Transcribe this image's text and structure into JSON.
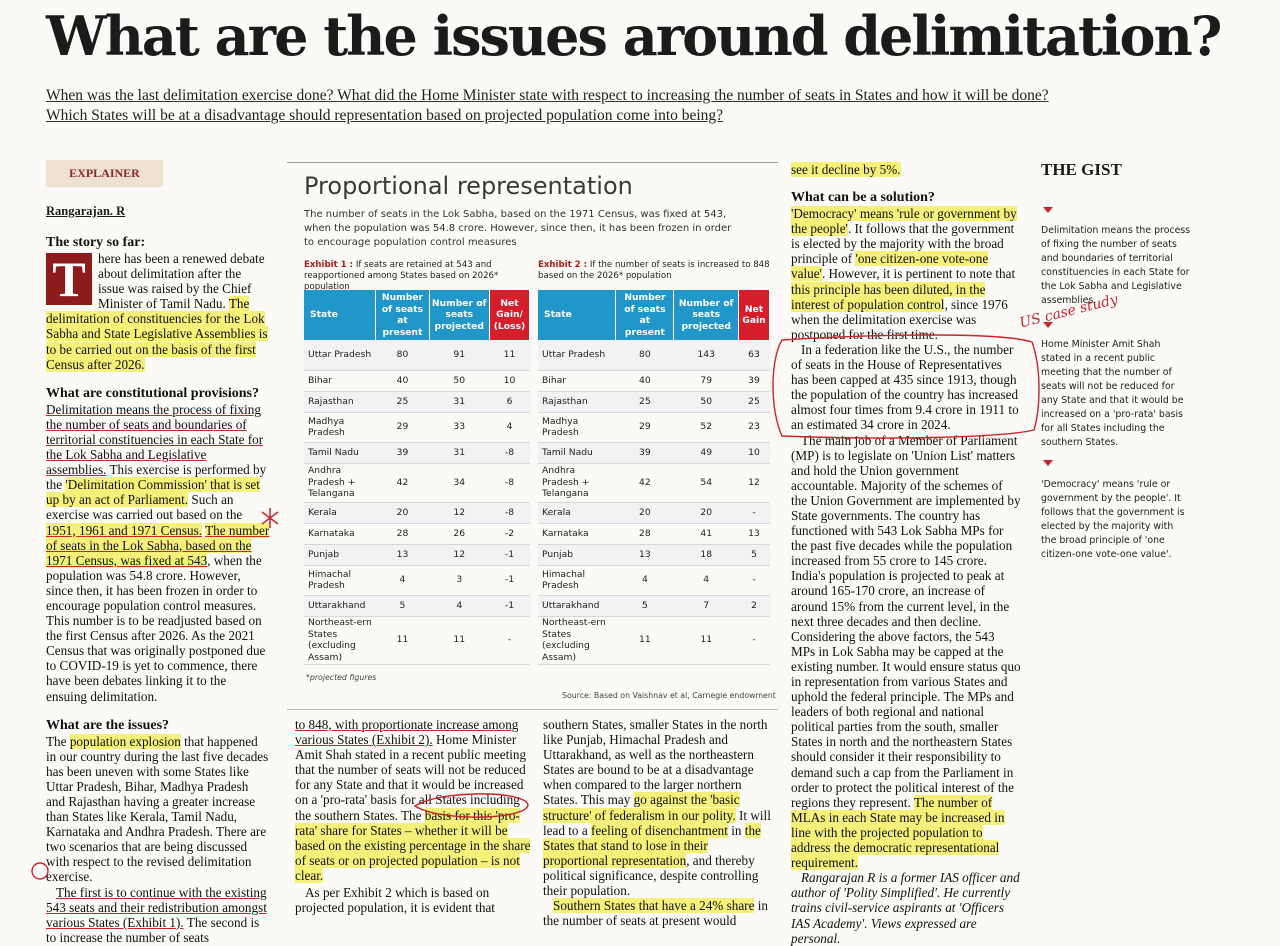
{
  "title": "What are the issues around delimitation?",
  "standfirst": "When was the last delimitation exercise done? What did the Home Minister state with respect to increasing the number of seats in States and how it will be done? Which States will be at a disadvantage should representation based on projected population come into being?",
  "badge": "EXPLAINER",
  "author": "Rangarajan. R",
  "col1": {
    "h1": "The story so far:",
    "dropcap": "T",
    "p1a": "here has been a renewed debate about delimitation after the issue was raised by the Chief Minister of Tamil Nadu. ",
    "p1b": "The delimitation of constituencies for the Lok Sabha and State Legislative Assemblies is to be carried out on the basis of the first Census after 2026.",
    "h2": "What are constitutional provisions?",
    "p2a": "Delimitation means the process of fixing the number of seats and boundaries of territorial constituencies in each State for the Lok Sabha and Legislative assemblies.",
    "p2b": " This exercise is performed by the ",
    "p2c": "'Delimitation Commission' that is set up by an act of Parliament.",
    "p2d": " Such an exercise was carried out based on the ",
    "p2e": "1951, 1961 and 1971 Census.",
    "p2f": " ",
    "p2g": "The number of seats in the Lok Sabha, based on the 1971 Census, was fixed at 543",
    "p2h": ", when the population was 54.8 crore. However, since then, it has been frozen in order to encourage population control measures. This number is to be readjusted based on the first Census after 2026. As the 2021 Census that was originally postponed due to COVID-19 is yet to commence, there have been debates linking it to the ensuing delimitation.",
    "h3": "What are the issues?",
    "p3a": "The ",
    "p3b": "population explosion",
    "p3c": " that happened in our country during the last five decades has been uneven with some States like Uttar Pradesh, Bihar, Madhya Pradesh and Rajasthan having a greater increase than States like Kerala, Tamil Nadu, Karnataka and Andhra Pradesh. There are two scenarios that are being discussed with respect to the revised delimitation exercise.",
    "p4a": "The first is to continue with the existing 543 seats and their redistribution amongst various States (Exhibit 1).",
    "p4b": " The second is to increase the number of seats"
  },
  "panel": {
    "title": "Proportional representation",
    "desc": "The number of seats in the Lok Sabha, based on the 1971 Census, was fixed at 543, when the population was 54.8 crore. However, since then, it has been frozen in order to encourage population control measures",
    "ex1_label": "Exhibit 1 :",
    "ex1_text": " If seats are retained at 543 and reapportioned among States based on 2026* population",
    "ex2_label": "Exhibit 2 :",
    "ex2_text": " If the number of seats is increased to 848 based on the 2026* population",
    "ex1_headers": [
      "State",
      "Number of seats at present",
      "Number of seats projected",
      "Net Gain/ (Loss)"
    ],
    "ex2_headers": [
      "State",
      "Number of seats at present",
      "Number of seats projected",
      "Net Gain"
    ],
    "rows1": [
      [
        "Uttar Pradesh",
        "80",
        "91",
        "11"
      ],
      [
        "Bihar",
        "40",
        "50",
        "10"
      ],
      [
        "Rajasthan",
        "25",
        "31",
        "6"
      ],
      [
        "Madhya Pradesh",
        "29",
        "33",
        "4"
      ],
      [
        "Tamil Nadu",
        "39",
        "31",
        "-8"
      ],
      [
        "Andhra Pradesh + Telangana",
        "42",
        "34",
        "-8"
      ],
      [
        "Kerala",
        "20",
        "12",
        "-8"
      ],
      [
        "Karnataka",
        "28",
        "26",
        "-2"
      ],
      [
        "Punjab",
        "13",
        "12",
        "-1"
      ],
      [
        "Himachal Pradesh",
        "4",
        "3",
        "-1"
      ],
      [
        "Uttarakhand",
        "5",
        "4",
        "-1"
      ],
      [
        "Northeast-ern States (excluding Assam)",
        "11",
        "11",
        "-"
      ]
    ],
    "rows2": [
      [
        "Uttar Pradesh",
        "80",
        "143",
        "63"
      ],
      [
        "Bihar",
        "40",
        "79",
        "39"
      ],
      [
        "Rajasthan",
        "25",
        "50",
        "25"
      ],
      [
        "Madhya Pradesh",
        "29",
        "52",
        "23"
      ],
      [
        "Tamil Nadu",
        "39",
        "49",
        "10"
      ],
      [
        "Andhra Pradesh + Telangana",
        "42",
        "54",
        "12"
      ],
      [
        "Kerala",
        "20",
        "20",
        "-"
      ],
      [
        "Karnataka",
        "28",
        "41",
        "13"
      ],
      [
        "Punjab",
        "13",
        "18",
        "5"
      ],
      [
        "Himachal Pradesh",
        "4",
        "4",
        "-"
      ],
      [
        "Uttarakhand",
        "5",
        "7",
        "2"
      ],
      [
        "Northeast-ern States (excluding Assam)",
        "11",
        "11",
        "-"
      ]
    ],
    "footnote": "*projected figures",
    "source": "Source: Based on Vaishnav et al, Carnegie endowment"
  },
  "col2": {
    "p1a": "to 848, with proportionate increase among various States (Exhibit 2).",
    "p1b": " Home Minister Amit Shah stated in a recent public meeting that the number of seats will not be reduced for any State and that it would be increased on a 'pro-rata' basis for all States including the southern States. The ",
    "p1c": "basis for this 'pro-rata' share for States – whether it will be based on the existing percentage in the share of seats or on projected population – is not clear.",
    "p2": "As per Exhibit 2 which is based on projected population, it is evident that"
  },
  "col3": {
    "p1a": "southern States, smaller States in the north like Punjab, Himachal Pradesh and Uttarakhand, as well as the northeastern States are bound to be at a disadvantage when compared to the larger northern States. This may ",
    "p1b": "go against the 'basic structure' of federalism in our polity.",
    "p1c": " It will lead to a ",
    "p1d": "feeling of disenchantment",
    "p1e": " in ",
    "p1f": "the States that stand to lose in their proportional representation",
    "p1g": ", and thereby political significance, despite controlling their population.",
    "p2a": "Southern States that have a 24% share",
    "p2b": " in the number of seats at present would"
  },
  "col4": {
    "top": "see it decline by 5%.",
    "h1": "What can be a solution?",
    "p1a": "'Democracy' means 'rule or government by the people'",
    "p1b": ". It follows that the government is elected by the majority with the broad principle of ",
    "p1c": "'one citizen-one vote-one value'",
    "p1d": ". However, it is pertinent to note that ",
    "p1e": "this principle has been diluted, in the interest of population control",
    "p1f": ", since 1976 when the delimitation exercise was postponed for the first time.",
    "p2": "In a federation like the U.S., the number of seats in the House of Representatives has been capped at 435 since 1913, though the population of the country has increased almost four times from 9.4 crore in 1911 to an estimated 34 crore in 2024.",
    "p3a": "The main job of a Member of Parliament (MP) is to legislate on 'Union List' matters and hold the Union government accountable. Majority of the schemes of the Union Government are implemented by State governments. The country has functioned with 543 Lok Sabha MPs for the past five decades while the population increased from 55 crore to 145 crore. India's population is projected to peak at around 165-170 crore, an increase of around 15% from the current level, in the next three decades and then decline. Considering the above factors, the 543 MPs in Lok Sabha may be capped at the existing number. It would ensure status quo in representation from various States and uphold the federal principle. The MPs and leaders of both regional and national political parties from the south, smaller States in north and the northeastern States should consider it their responsibility to demand such a cap from the Parliament in order to protect the political interest of the regions they represent. ",
    "p3b": "The number of MLAs in each State may be increased in line with the projected population to address the democratic representational requirement.",
    "bio": "Rangarajan R is a former IAS officer and author of 'Polity Simplified'. He currently trains civil-service aspirants at 'Officers IAS Academy'. Views expressed are personal.",
    "annotation": "US case study"
  },
  "gist": {
    "heading": "THE GIST",
    "item1": "Delimitation means the process of fixing the number of seats and boundaries of territorial constituencies in each State for the Lok Sabha and Legislative assemblies.",
    "item2": "Home Minister Amit Shah stated in a recent public meeting that the number of seats will not be reduced for any State and that it would be increased on a 'pro-rata' basis for all States including the southern States.",
    "item3": "'Democracy' means 'rule or government by the people'. It follows that the government is elected by the majority with the broad principle of 'one citizen-one vote-one value'."
  }
}
